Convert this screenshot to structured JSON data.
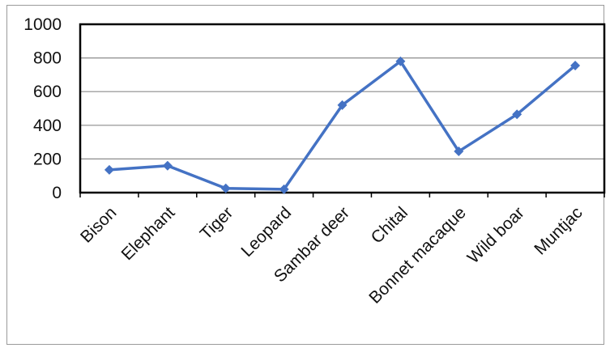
{
  "chart_data": {
    "type": "line",
    "categories": [
      "Bison",
      "Elephant",
      "Tiger",
      "Leopard",
      "Sambar deer",
      "Chital",
      "Bonnet macaque",
      "Wild boar",
      "Muntjac"
    ],
    "series": [
      {
        "values": [
          135,
          160,
          25,
          20,
          520,
          780,
          245,
          465,
          755
        ]
      }
    ],
    "ylim": [
      0,
      1000
    ],
    "yticks": [
      0,
      200,
      400,
      600,
      800,
      1000
    ],
    "grid": true,
    "legend": "none",
    "colors": {
      "line": "#4472C4",
      "grid": "#8c8c8c",
      "axis": "#000000"
    }
  }
}
